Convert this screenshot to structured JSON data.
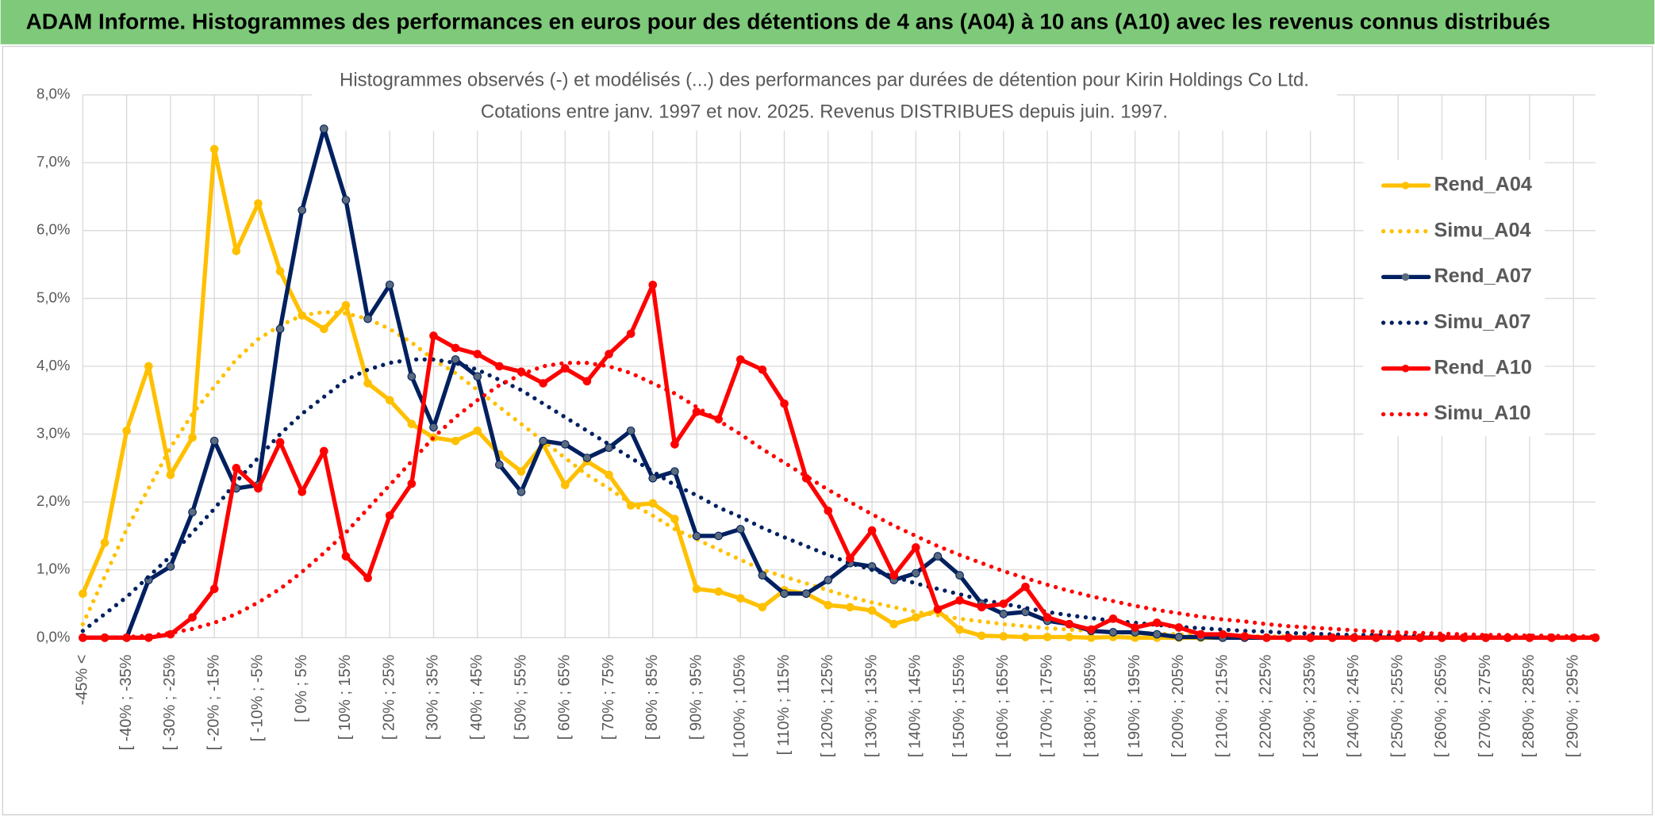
{
  "header": {
    "title": "ADAM Informe. Histogrammes des performances en euros pour des détentions de 4 ans (A04) à 10 ans (A10) avec les revenus connus distribués"
  },
  "chart_data": {
    "type": "line",
    "title": "Histogrammes observés (-) et modélisés (...) des performances par durées de détention pour Kirin Holdings Co Ltd.",
    "subtitle": "Cotations entre janv. 1997 et nov. 2025. Revenus DISTRIBUES depuis juin. 1997.",
    "categories": [
      "-45% <",
      null,
      "[ -40% ; -35%",
      null,
      "[ -30% ; -25%",
      null,
      "[ -20% ; -15%",
      null,
      "[ -10% ; -5%",
      null,
      "[ 0% ; 5%",
      null,
      "[ 10% ; 15%",
      null,
      "[ 20% ; 25%",
      null,
      "[ 30% ; 35%",
      null,
      "[ 40% ; 45%",
      null,
      "[ 50% ; 55%",
      null,
      "[ 60% ; 65%",
      null,
      "[ 70% ; 75%",
      null,
      "[ 80% ; 85%",
      null,
      "[ 90% ; 95%",
      null,
      "[ 100% ; 105%",
      null,
      "[ 110% ; 115%",
      null,
      "[ 120% ; 125%",
      null,
      "[ 130% ; 135%",
      null,
      "[ 140% ; 145%",
      null,
      "[ 150% ; 155%",
      null,
      "[ 160% ; 165%",
      null,
      "[ 170% ; 175%",
      null,
      "[ 180% ; 185%",
      null,
      "[ 190% ; 195%",
      null,
      "[ 200% ; 205%",
      null,
      "[ 210% ; 215%",
      null,
      "[ 220% ; 225%",
      null,
      "[ 230% ; 235%",
      null,
      "[ 240% ; 245%",
      null,
      "[ 250% ; 255%",
      null,
      "[ 260% ; 265%",
      null,
      "[ 270% ; 275%",
      null,
      "[ 280% ; 285%",
      null,
      "[ 290% ; 295%",
      null
    ],
    "series": [
      {
        "name": "Rend_A04",
        "color": "#ffc000",
        "style": "solid",
        "marker_color": "#ffc000",
        "values": [
          0.65,
          1.4,
          3.05,
          4.0,
          2.4,
          2.95,
          7.2,
          5.7,
          6.4,
          5.4,
          4.75,
          4.55,
          4.9,
          3.75,
          3.5,
          3.15,
          2.95,
          2.9,
          3.05,
          2.7,
          2.45,
          2.85,
          2.25,
          2.6,
          2.4,
          1.95,
          1.98,
          1.75,
          0.72,
          0.68,
          0.58,
          0.45,
          0.7,
          0.65,
          0.48,
          0.45,
          0.4,
          0.2,
          0.3,
          0.4,
          0.12,
          0.03,
          0.02,
          0.01,
          0.01,
          0.01,
          0,
          0.01,
          0,
          0,
          0,
          0,
          0,
          0,
          0,
          0,
          0,
          0,
          0,
          0,
          0,
          0,
          0,
          0,
          0,
          0,
          0,
          0,
          0,
          0
        ]
      },
      {
        "name": "Simu_A04",
        "color": "#ffc000",
        "style": "dotted",
        "values": [
          0.2,
          0.9,
          1.6,
          2.2,
          2.8,
          3.3,
          3.7,
          4.1,
          4.4,
          4.6,
          4.75,
          4.8,
          4.78,
          4.7,
          4.55,
          4.35,
          4.1,
          3.9,
          3.65,
          3.4,
          3.15,
          2.9,
          2.65,
          2.4,
          2.2,
          1.98,
          1.8,
          1.6,
          1.45,
          1.3,
          1.15,
          1.0,
          0.9,
          0.8,
          0.7,
          0.6,
          0.52,
          0.45,
          0.38,
          0.33,
          0.28,
          0.24,
          0.2,
          0.17,
          0.14,
          0.12,
          0.1,
          0.08,
          0.07,
          0.06,
          0.05,
          0.04,
          0.03,
          0.03,
          0.02,
          0.02,
          0.01,
          0.01,
          0.01,
          0.01,
          0.01,
          0,
          0,
          0,
          0,
          0,
          0,
          0,
          0,
          0
        ]
      },
      {
        "name": "Rend_A07",
        "color": "#002060",
        "style": "solid",
        "marker_color": "#5b6b7d",
        "values": [
          0,
          0,
          0,
          0.85,
          1.05,
          1.85,
          2.9,
          2.2,
          2.25,
          4.55,
          6.3,
          7.5,
          6.45,
          4.7,
          5.2,
          3.85,
          3.1,
          4.1,
          3.85,
          2.55,
          2.15,
          2.9,
          2.85,
          2.65,
          2.8,
          3.05,
          2.35,
          2.45,
          1.5,
          1.5,
          1.6,
          0.92,
          0.65,
          0.65,
          0.85,
          1.1,
          1.05,
          0.85,
          0.95,
          1.2,
          0.92,
          0.5,
          0.35,
          0.38,
          0.25,
          0.2,
          0.1,
          0.08,
          0.08,
          0.05,
          0.01,
          0.01,
          0,
          0,
          0,
          0,
          0,
          0,
          0,
          0,
          0,
          0,
          0,
          0,
          0,
          0,
          0,
          0,
          0,
          0
        ]
      },
      {
        "name": "Simu_A07",
        "color": "#002060",
        "style": "dotted",
        "values": [
          0.1,
          0.35,
          0.6,
          0.9,
          1.2,
          1.55,
          1.9,
          2.3,
          2.65,
          3.0,
          3.3,
          3.55,
          3.8,
          3.95,
          4.05,
          4.1,
          4.1,
          4.05,
          3.95,
          3.8,
          3.65,
          3.45,
          3.25,
          3.05,
          2.85,
          2.65,
          2.45,
          2.25,
          2.1,
          1.92,
          1.78,
          1.62,
          1.48,
          1.35,
          1.22,
          1.1,
          1.0,
          0.9,
          0.8,
          0.72,
          0.64,
          0.56,
          0.5,
          0.44,
          0.38,
          0.33,
          0.29,
          0.25,
          0.22,
          0.19,
          0.16,
          0.14,
          0.12,
          0.1,
          0.09,
          0.07,
          0.06,
          0.05,
          0.04,
          0.04,
          0.03,
          0.03,
          0.02,
          0.02,
          0.02,
          0.01,
          0.01,
          0.01,
          0.01,
          0.01
        ]
      },
      {
        "name": "Rend_A10",
        "color": "#ff0000",
        "style": "solid",
        "marker_color": "#ff0000",
        "values": [
          0,
          0,
          0,
          0,
          0.05,
          0.3,
          0.72,
          2.5,
          2.2,
          2.88,
          2.15,
          2.75,
          1.2,
          0.88,
          1.8,
          2.27,
          4.45,
          4.27,
          4.18,
          4.0,
          3.92,
          3.75,
          3.97,
          3.78,
          4.18,
          4.48,
          5.2,
          2.85,
          3.33,
          3.22,
          4.1,
          3.95,
          3.45,
          2.35,
          1.87,
          1.17,
          1.58,
          0.92,
          1.33,
          0.42,
          0.55,
          0.45,
          0.5,
          0.75,
          0.3,
          0.2,
          0.12,
          0.28,
          0.15,
          0.22,
          0.15,
          0.05,
          0.05,
          0.02,
          0,
          0,
          0,
          0,
          0,
          0,
          0,
          0,
          0,
          0,
          0,
          0,
          0,
          0,
          0,
          0
        ]
      },
      {
        "name": "Simu_A10",
        "color": "#ff0000",
        "style": "dotted",
        "values": [
          0,
          0,
          0.01,
          0.03,
          0.07,
          0.13,
          0.22,
          0.35,
          0.52,
          0.72,
          0.97,
          1.25,
          1.55,
          1.9,
          2.25,
          2.6,
          2.95,
          3.25,
          3.5,
          3.72,
          3.88,
          4.0,
          4.05,
          4.05,
          4.0,
          3.9,
          3.75,
          3.6,
          3.4,
          3.2,
          3.0,
          2.78,
          2.58,
          2.38,
          2.18,
          2.0,
          1.82,
          1.65,
          1.5,
          1.35,
          1.22,
          1.1,
          0.98,
          0.88,
          0.78,
          0.69,
          0.61,
          0.54,
          0.47,
          0.41,
          0.36,
          0.31,
          0.27,
          0.24,
          0.2,
          0.17,
          0.15,
          0.13,
          0.11,
          0.09,
          0.08,
          0.07,
          0.06,
          0.05,
          0.04,
          0.04,
          0.03,
          0.03,
          0.02,
          0.02
        ]
      }
    ],
    "ylim": [
      0,
      8
    ],
    "yticks": [
      {
        "value": 0,
        "label": "0,0%"
      },
      {
        "value": 1,
        "label": "1,0%"
      },
      {
        "value": 2,
        "label": "2,0%"
      },
      {
        "value": 3,
        "label": "3,0%"
      },
      {
        "value": 4,
        "label": "4,0%"
      },
      {
        "value": 5,
        "label": "5,0%"
      },
      {
        "value": 6,
        "label": "6,0%"
      },
      {
        "value": 7,
        "label": "7,0%"
      },
      {
        "value": 8,
        "label": "8,0%"
      }
    ],
    "grid": true,
    "legend": "right"
  }
}
